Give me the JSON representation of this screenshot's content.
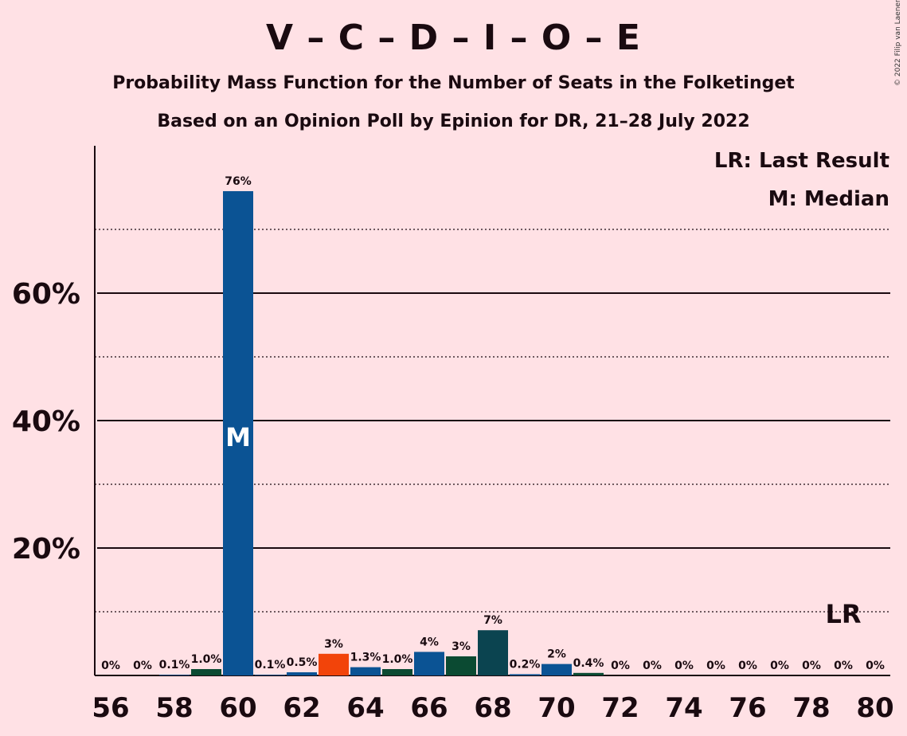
{
  "title": "V – C – D – I – O – E",
  "subtitle": "Probability Mass Function for the Number of Seats in the Folketinget",
  "subtitle2": "Based on an Opinion Poll by Epinion for DR, 21–28 July 2022",
  "copyright": "© 2022 Filip van Laenen",
  "legend": {
    "last_result": "LR: Last Result",
    "median": "M: Median"
  },
  "chart_data": {
    "type": "bar",
    "x": [
      56,
      57,
      58,
      59,
      60,
      61,
      62,
      63,
      64,
      65,
      66,
      67,
      68,
      69,
      70,
      71,
      72,
      73,
      74,
      75,
      76,
      77,
      78,
      79,
      80
    ],
    "values": [
      0,
      0,
      0.1,
      1.0,
      76,
      0.1,
      0.5,
      3.4,
      1.3,
      1.0,
      3.7,
      3.0,
      7.1,
      0.2,
      1.8,
      0.4,
      0,
      0,
      0,
      0,
      0,
      0,
      0,
      0,
      0
    ],
    "labels": [
      "0%",
      "0%",
      "0.1%",
      "1.0%",
      "76%",
      "0.1%",
      "0.5%",
      "3%",
      "1.3%",
      "1.0%",
      "4%",
      "3%",
      "7%",
      "0.2%",
      "2%",
      "0.4%",
      "0%",
      "0%",
      "0%",
      "0%",
      "0%",
      "0%",
      "0%",
      "0%",
      "0%"
    ],
    "colors": [
      "#0b5394",
      "#0b5394",
      "#0b5394",
      "#0b4a32",
      "#0b5394",
      "#0b5394",
      "#0b5394",
      "#f2440a",
      "#0b5394",
      "#0b4a32",
      "#0b5394",
      "#0b4a32",
      "#0b4450",
      "#0b5394",
      "#0b5394",
      "#0b4a32",
      "#0b5394",
      "#0b5394",
      "#0b5394",
      "#0b5394",
      "#0b5394",
      "#0b5394",
      "#0b5394",
      "#0b5394",
      "#0b5394"
    ],
    "x_tick_labels": [
      "56",
      "58",
      "60",
      "62",
      "64",
      "66",
      "68",
      "70",
      "72",
      "74",
      "76",
      "78",
      "80"
    ],
    "y_ticks": [
      {
        "value": 10,
        "style": "dotted"
      },
      {
        "value": 20,
        "style": "solid",
        "label": "20%"
      },
      {
        "value": 30,
        "style": "dotted"
      },
      {
        "value": 40,
        "style": "solid",
        "label": "40%"
      },
      {
        "value": 50,
        "style": "dotted"
      },
      {
        "value": 60,
        "style": "solid",
        "label": "60%"
      },
      {
        "value": 70,
        "style": "dotted"
      }
    ],
    "ylim": [
      0,
      83
    ],
    "median": {
      "x": 60,
      "label": "M"
    },
    "last_result": {
      "x": 79,
      "label": "LR"
    },
    "grid": true,
    "legend_position": "top-right"
  }
}
